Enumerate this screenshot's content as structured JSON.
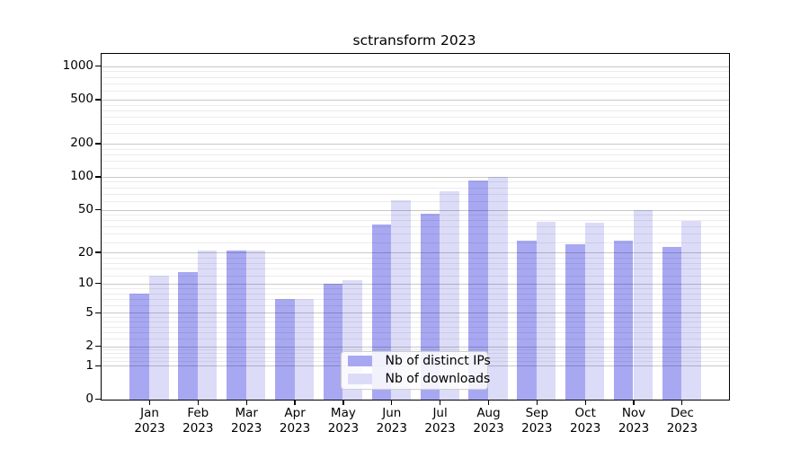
{
  "title": "sctransform 2023",
  "colors": {
    "bar_distinct_ips": "#a8a8f2",
    "bar_downloads": "#dcdcf8",
    "grid_major": "#c9c9c9",
    "grid_minor": "#ededed",
    "axis": "#000000",
    "legend_border": "#cfcfcf",
    "background": "#ffffff"
  },
  "legend": {
    "items": [
      {
        "label": "Nb of distinct IPs"
      },
      {
        "label": "Nb of downloads"
      }
    ]
  },
  "chart_data": {
    "type": "bar",
    "title": "sctransform 2023",
    "xlabel": "",
    "ylabel": "",
    "y_scale": "log1p",
    "ylim": [
      0,
      1285
    ],
    "grid": true,
    "legend_position": "lower center, inside plot",
    "categories": [
      "Jan",
      "Feb",
      "Mar",
      "Apr",
      "May",
      "Jun",
      "Jul",
      "Aug",
      "Sep",
      "Oct",
      "Nov",
      "Dec"
    ],
    "category_year": "2023",
    "series": [
      {
        "name": "Nb of distinct IPs",
        "color": "#a8a8f2",
        "values": [
          8,
          13,
          21,
          7,
          10,
          37,
          46,
          93,
          26,
          24,
          26,
          23
        ]
      },
      {
        "name": "Nb of downloads",
        "color": "#dcdcf8",
        "values": [
          12,
          21,
          21,
          7,
          11,
          62,
          74,
          101,
          39,
          38,
          50,
          40
        ]
      }
    ],
    "y_ticks": [
      0,
      1,
      2,
      5,
      10,
      20,
      50,
      100,
      200,
      500,
      1000
    ],
    "y_minor_gridlines": [
      1.2,
      1.4,
      1.6,
      1.8,
      2.5,
      3,
      3.5,
      4,
      4.5,
      6,
      7,
      8,
      9,
      12,
      14,
      16,
      18,
      25,
      30,
      35,
      40,
      45,
      60,
      70,
      80,
      90,
      120,
      140,
      160,
      180,
      250,
      300,
      350,
      400,
      450,
      600,
      700,
      800,
      900
    ]
  }
}
